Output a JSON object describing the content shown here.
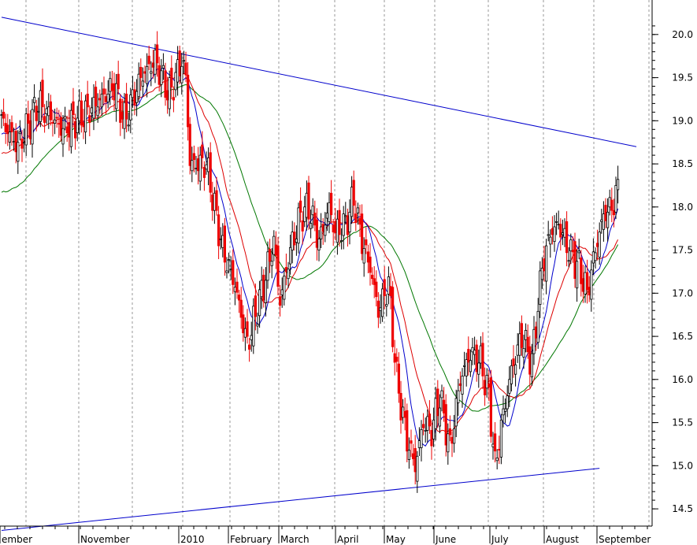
{
  "chart_data": {
    "type": "candlestick",
    "x_axis": {
      "labels": [
        "ember",
        "November",
        "2010",
        "February",
        "March",
        "April",
        "May",
        "June",
        "July",
        "August",
        "September"
      ]
    },
    "y_axis": {
      "ticks": [
        14.5,
        15.0,
        15.5,
        16.0,
        16.5,
        17.0,
        17.5,
        18.0,
        18.5,
        19.0,
        19.5,
        20.0
      ],
      "tick_labels": [
        "14.5",
        "15.0",
        "15.5",
        "16.0",
        "16.5",
        "17.0",
        "17.5",
        "18.0",
        "18.5",
        "19.0",
        "19.5",
        "20.0"
      ],
      "range": [
        14.3,
        20.4
      ],
      "position": "right"
    },
    "grid": {
      "vertical": true,
      "style": "dashed"
    },
    "colors": {
      "up": "#000000",
      "down": "#ee0000",
      "ma_short": "#0000cc",
      "ma_medium": "#dd0000",
      "ma_long": "#007700",
      "trendlines": "#0000cc"
    },
    "price_anchors": [
      [
        0,
        19.0
      ],
      [
        8,
        18.7
      ],
      [
        18,
        19.2
      ],
      [
        30,
        18.9
      ],
      [
        42,
        19.1
      ],
      [
        55,
        19.4
      ],
      [
        60,
        19.0
      ],
      [
        68,
        19.5
      ],
      [
        75,
        19.7
      ],
      [
        82,
        19.3
      ],
      [
        88,
        19.7
      ],
      [
        90,
        19.5
      ],
      [
        92,
        18.5
      ],
      [
        100,
        18.5
      ],
      [
        108,
        17.5
      ],
      [
        114,
        17.1
      ],
      [
        120,
        16.4
      ],
      [
        128,
        17.1
      ],
      [
        133,
        17.6
      ],
      [
        136,
        16.9
      ],
      [
        141,
        17.5
      ],
      [
        146,
        17.9
      ],
      [
        150,
        18.0
      ],
      [
        155,
        17.6
      ],
      [
        160,
        18.0
      ],
      [
        163,
        17.7
      ],
      [
        168,
        17.8
      ],
      [
        172,
        18.1
      ],
      [
        176,
        17.6
      ],
      [
        180,
        17.3
      ],
      [
        184,
        16.8
      ],
      [
        189,
        17.1
      ],
      [
        193,
        16.0
      ],
      [
        198,
        15.3
      ],
      [
        202,
        15.0
      ],
      [
        206,
        15.5
      ],
      [
        210,
        15.4
      ],
      [
        214,
        15.8
      ],
      [
        219,
        15.2
      ],
      [
        224,
        16.0
      ],
      [
        229,
        16.3
      ],
      [
        234,
        16.2
      ],
      [
        238,
        15.8
      ],
      [
        241,
        15.0
      ],
      [
        245,
        15.6
      ],
      [
        249,
        16.1
      ],
      [
        254,
        16.5
      ],
      [
        259,
        16.2
      ],
      [
        264,
        17.3
      ],
      [
        268,
        17.7
      ],
      [
        272,
        17.8
      ],
      [
        277,
        17.5
      ],
      [
        282,
        17.3
      ],
      [
        286,
        17.0
      ],
      [
        290,
        17.5
      ],
      [
        294,
        17.9
      ],
      [
        298,
        18.0
      ],
      [
        301,
        18.2
      ]
    ],
    "ma_short_period": 10,
    "ma_medium_period": 20,
    "ma_long_period": 40,
    "trendline_upper": {
      "from": [
        0,
        20.2
      ],
      "to": [
        310,
        18.7
      ]
    },
    "trendline_lower": {
      "from": [
        0,
        14.25
      ],
      "to": [
        292,
        14.97
      ]
    }
  }
}
